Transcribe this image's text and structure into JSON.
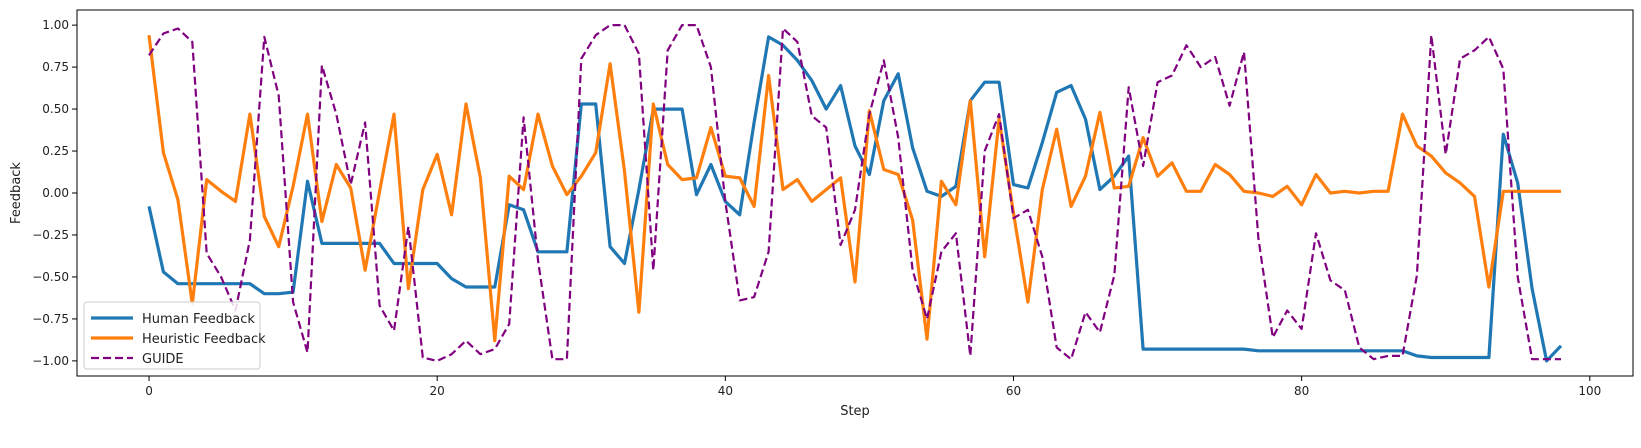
{
  "chart_data": {
    "type": "line",
    "title": "",
    "xlabel": "Step",
    "ylabel": "Feedback",
    "xlim": [
      -5,
      103
    ],
    "ylim": [
      -1.09,
      1.09
    ],
    "xticks": [
      0,
      20,
      40,
      60,
      80,
      100
    ],
    "yticks": [
      -1.0,
      -0.75,
      -0.5,
      -0.25,
      0.0,
      0.25,
      0.5,
      0.75,
      1.0
    ],
    "xtick_labels": [
      "0",
      "20",
      "40",
      "60",
      "80",
      "100"
    ],
    "ytick_labels": [
      "−1.00",
      "−0.75",
      "−0.50",
      "−0.25",
      "0.00",
      "0.25",
      "0.50",
      "0.75",
      "1.00"
    ],
    "grid": false,
    "legend_position": "lower-left",
    "series": [
      {
        "name": "Human Feedback",
        "color": "#1f77b4",
        "style": "solid",
        "x": [
          0,
          1,
          2,
          3,
          4,
          5,
          6,
          7,
          8,
          9,
          10,
          11,
          12,
          13,
          14,
          15,
          16,
          17,
          18,
          19,
          20,
          21,
          22,
          23,
          24,
          25,
          26,
          27,
          28,
          29,
          30,
          31,
          32,
          33,
          34,
          35,
          36,
          37,
          38,
          39,
          40,
          41,
          42,
          43,
          44,
          45,
          46,
          47,
          48,
          49,
          50,
          51,
          52,
          53,
          54,
          55,
          56,
          57,
          58,
          59,
          60,
          61,
          62,
          63,
          64,
          65,
          66,
          67,
          68,
          69,
          70,
          71,
          72,
          73,
          74,
          75,
          76,
          77,
          78,
          79,
          80,
          81,
          82,
          83,
          84,
          85,
          86,
          87,
          88,
          89,
          90,
          91,
          92,
          93,
          94,
          95,
          96,
          97,
          98
        ],
        "values": [
          -0.08,
          -0.47,
          -0.54,
          -0.54,
          -0.54,
          -0.54,
          -0.54,
          -0.54,
          -0.6,
          -0.6,
          -0.59,
          0.07,
          -0.3,
          -0.3,
          -0.3,
          -0.3,
          -0.3,
          -0.42,
          -0.42,
          -0.42,
          -0.42,
          -0.51,
          -0.56,
          -0.56,
          -0.56,
          -0.07,
          -0.1,
          -0.35,
          -0.35,
          -0.35,
          0.53,
          0.53,
          -0.32,
          -0.42,
          0.02,
          0.5,
          0.5,
          0.5,
          -0.01,
          0.17,
          -0.05,
          -0.13,
          0.42,
          0.93,
          0.88,
          0.79,
          0.67,
          0.5,
          0.64,
          0.28,
          0.11,
          0.55,
          0.71,
          0.27,
          0.01,
          -0.02,
          0.04,
          0.55,
          0.66,
          0.66,
          0.05,
          0.03,
          0.3,
          0.6,
          0.64,
          0.44,
          0.02,
          0.1,
          0.22,
          -0.93,
          -0.93,
          -0.93,
          -0.93,
          -0.93,
          -0.93,
          -0.93,
          -0.93,
          -0.94,
          -0.94,
          -0.94,
          -0.94,
          -0.94,
          -0.94,
          -0.94,
          -0.94,
          -0.94,
          -0.94,
          -0.94,
          -0.97,
          -0.98,
          -0.98,
          -0.98,
          -0.98,
          -0.98,
          0.35,
          0.06,
          -0.57,
          -1.0,
          -0.91
        ]
      },
      {
        "name": "Heuristic Feedback",
        "color": "#ff7f0e",
        "style": "solid",
        "x": [
          0,
          1,
          2,
          3,
          4,
          5,
          6,
          7,
          8,
          9,
          10,
          11,
          12,
          13,
          14,
          15,
          16,
          17,
          18,
          19,
          20,
          21,
          22,
          23,
          24,
          25,
          26,
          27,
          28,
          29,
          30,
          31,
          32,
          33,
          34,
          35,
          36,
          37,
          38,
          39,
          40,
          41,
          42,
          43,
          44,
          45,
          46,
          47,
          48,
          49,
          50,
          51,
          52,
          53,
          54,
          55,
          56,
          57,
          58,
          59,
          60,
          61,
          62,
          63,
          64,
          65,
          66,
          67,
          68,
          69,
          70,
          71,
          72,
          73,
          74,
          75,
          76,
          77,
          78,
          79,
          80,
          81,
          82,
          83,
          84,
          85,
          86,
          87,
          88,
          89,
          90,
          91,
          92,
          93,
          94,
          95,
          96,
          97,
          98
        ],
        "values": [
          0.94,
          0.24,
          -0.04,
          -0.66,
          0.08,
          0.01,
          -0.05,
          0.47,
          -0.14,
          -0.32,
          0.04,
          0.47,
          -0.17,
          0.17,
          0.03,
          -0.46,
          0.01,
          0.47,
          -0.57,
          0.02,
          0.23,
          -0.13,
          0.53,
          0.09,
          -0.88,
          0.1,
          0.02,
          0.47,
          0.16,
          -0.01,
          0.1,
          0.24,
          0.77,
          0.13,
          -0.71,
          0.53,
          0.17,
          0.08,
          0.09,
          0.39,
          0.1,
          0.09,
          -0.08,
          0.7,
          0.02,
          0.08,
          -0.05,
          0.02,
          0.09,
          -0.53,
          0.49,
          0.14,
          0.11,
          -0.16,
          -0.87,
          0.07,
          -0.07,
          0.55,
          -0.38,
          0.44,
          -0.12,
          -0.65,
          0.02,
          0.38,
          -0.08,
          0.1,
          0.48,
          0.03,
          0.04,
          0.33,
          0.1,
          0.18,
          0.01,
          0.01,
          0.17,
          0.11,
          0.01,
          0.0,
          -0.02,
          0.04,
          -0.07,
          0.11,
          0.0,
          0.01,
          0.0,
          0.01,
          0.01,
          0.47,
          0.28,
          0.22,
          0.12,
          0.06,
          -0.02,
          -0.56,
          0.01,
          0.01,
          0.01,
          0.01,
          0.01
        ]
      },
      {
        "name": "GUIDE",
        "color": "#800080",
        "style": "dashed",
        "x": [
          0,
          1,
          2,
          3,
          4,
          5,
          6,
          7,
          8,
          9,
          10,
          11,
          12,
          13,
          14,
          15,
          16,
          17,
          18,
          19,
          20,
          21,
          22,
          23,
          24,
          25,
          26,
          27,
          28,
          29,
          30,
          31,
          32,
          33,
          34,
          35,
          36,
          37,
          38,
          39,
          40,
          41,
          42,
          43,
          44,
          45,
          46,
          47,
          48,
          49,
          50,
          51,
          52,
          53,
          54,
          55,
          56,
          57,
          58,
          59,
          60,
          61,
          62,
          63,
          64,
          65,
          66,
          67,
          68,
          69,
          70,
          71,
          72,
          73,
          74,
          75,
          76,
          77,
          78,
          79,
          80,
          81,
          82,
          83,
          84,
          85,
          86,
          87,
          88,
          89,
          90,
          91,
          92,
          93,
          94,
          95,
          96,
          97,
          98
        ],
        "values": [
          0.82,
          0.95,
          0.98,
          0.9,
          -0.36,
          -0.5,
          -0.7,
          -0.28,
          0.93,
          0.58,
          -0.65,
          -0.95,
          0.76,
          0.47,
          0.05,
          0.42,
          -0.67,
          -0.82,
          -0.2,
          -0.98,
          -1.0,
          -0.96,
          -0.88,
          -0.96,
          -0.93,
          -0.78,
          0.45,
          -0.4,
          -0.99,
          -0.99,
          0.8,
          0.94,
          1.0,
          1.0,
          0.83,
          -0.46,
          0.85,
          1.0,
          1.0,
          0.75,
          -0.05,
          -0.64,
          -0.62,
          -0.35,
          0.98,
          0.9,
          0.46,
          0.39,
          -0.31,
          -0.1,
          0.47,
          0.79,
          0.33,
          -0.46,
          -0.75,
          -0.35,
          -0.24,
          -0.97,
          0.25,
          0.47,
          -0.15,
          -0.1,
          -0.38,
          -0.92,
          -0.99,
          -0.71,
          -0.83,
          -0.49,
          0.63,
          0.16,
          0.66,
          0.7,
          0.88,
          0.75,
          0.81,
          0.52,
          0.84,
          -0.27,
          -0.86,
          -0.7,
          -0.81,
          -0.24,
          -0.52,
          -0.58,
          -0.92,
          -0.99,
          -0.97,
          -0.97,
          -0.49,
          0.94,
          0.23,
          0.8,
          0.85,
          0.93,
          0.74,
          -0.5,
          -0.99,
          -0.99,
          -0.99
        ]
      }
    ]
  }
}
